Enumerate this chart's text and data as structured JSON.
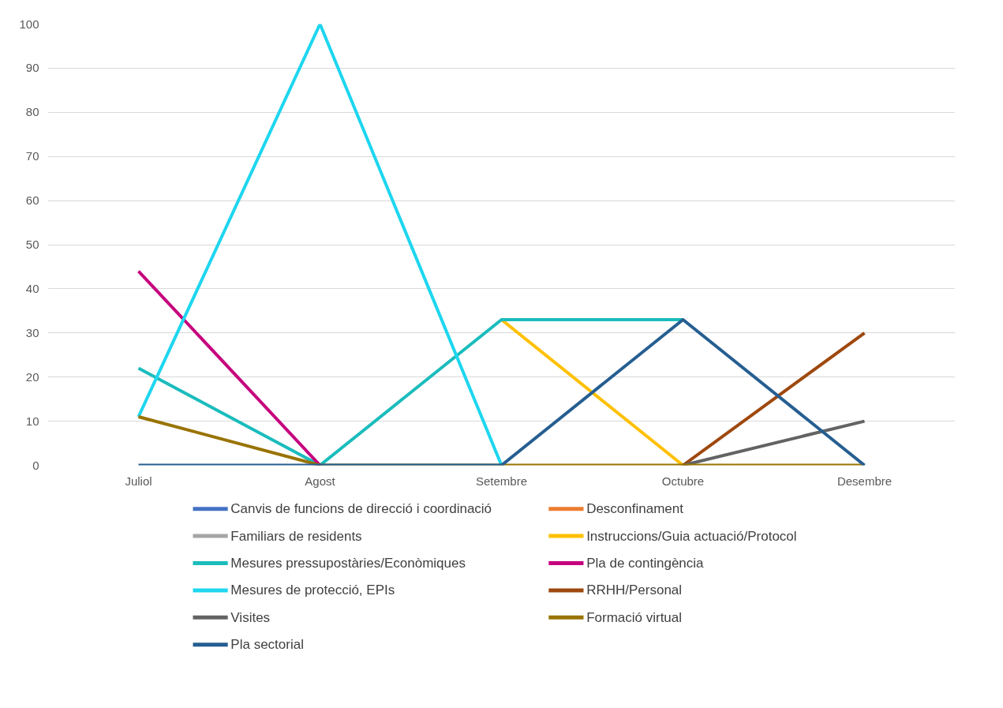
{
  "chart_data": {
    "type": "line",
    "categories": [
      "Juliol",
      "Agost",
      "Setembre",
      "Octubre",
      "Desembre"
    ],
    "ylim": [
      0,
      100
    ],
    "yticks": [
      0,
      10,
      20,
      30,
      40,
      50,
      60,
      70,
      80,
      90,
      100
    ],
    "grid": "y",
    "legend": "bottom",
    "line_style": "solid",
    "series": [
      {
        "name": "Canvis de funcions de direcció i coordinació",
        "color": "#4472c4",
        "values": [
          null,
          null,
          null,
          null,
          null
        ]
      },
      {
        "name": "Desconfinament",
        "color": "#ed7d31",
        "values": [
          null,
          null,
          null,
          null,
          null
        ]
      },
      {
        "name": "Familiars de residents",
        "color": "#a5a5a5",
        "values": [
          null,
          null,
          null,
          null,
          null
        ]
      },
      {
        "name": "Instruccions/Guia actuació/Protocol",
        "color": "#ffc000",
        "values": [
          null,
          null,
          33,
          0,
          null
        ]
      },
      {
        "name": "Mesures pressupostàries/Econòmiques",
        "color": "#1bbcbc",
        "values": [
          22,
          0,
          33,
          33,
          null
        ]
      },
      {
        "name": "Pla de contingència",
        "color": "#c6007e",
        "values": [
          44,
          0,
          null,
          null,
          null
        ]
      },
      {
        "name": "Mesures de protecció, EPIs",
        "color": "#1ed6ef",
        "values": [
          11,
          100,
          0,
          null,
          null
        ]
      },
      {
        "name": "RRHH/Personal",
        "color": "#9e480e",
        "values": [
          null,
          null,
          null,
          0,
          30
        ]
      },
      {
        "name": "Visites",
        "color": "#636363",
        "values": [
          null,
          null,
          null,
          0,
          10
        ]
      },
      {
        "name": "Formació virtual",
        "color": "#997300",
        "values": [
          11,
          0,
          0,
          0,
          0
        ]
      },
      {
        "name": "Pla sectorial",
        "color": "#255e91",
        "values": [
          0,
          0,
          0,
          33,
          0
        ]
      }
    ]
  }
}
